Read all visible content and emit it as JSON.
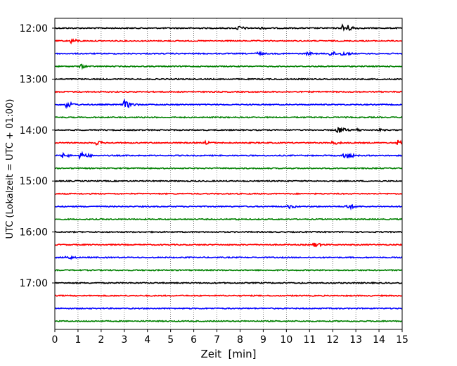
{
  "chart_data": {
    "type": "line",
    "title": "",
    "xlabel": "Zeit  [min]",
    "ylabel": "UTC (Lokalzeit = UTC + 01:00)",
    "xlim": [
      0,
      15
    ],
    "x_ticks": [
      "0",
      "1",
      "2",
      "3",
      "4",
      "5",
      "6",
      "7",
      "8",
      "9",
      "10",
      "11",
      "12",
      "13",
      "14",
      "15"
    ],
    "y_tick_labels": [
      "12:00",
      "13:00",
      "14:00",
      "15:00",
      "16:00",
      "17:00"
    ],
    "trace_interval_minutes": 15,
    "start_time": "12:00",
    "trace_count": 24,
    "colors": [
      "#000000",
      "#ff0000",
      "#0000ff",
      "#008000"
    ],
    "grid": "vertical dotted",
    "events": [
      {
        "trace": "12:00",
        "minute": 7.9,
        "amplitude": 0.35
      },
      {
        "trace": "12:00",
        "minute": 8.9,
        "amplitude": 0.2
      },
      {
        "trace": "12:00",
        "minute": 12.45,
        "amplitude": 0.75
      },
      {
        "trace": "12:15",
        "minute": 0.7,
        "amplitude": 0.35
      },
      {
        "trace": "12:30",
        "minute": 8.7,
        "amplitude": 0.3
      },
      {
        "trace": "12:30",
        "minute": 10.9,
        "amplitude": 0.25
      },
      {
        "trace": "12:30",
        "minute": 11.9,
        "amplitude": 0.35
      },
      {
        "trace": "12:30",
        "minute": 12.4,
        "amplitude": 0.35
      },
      {
        "trace": "12:45",
        "minute": 1.1,
        "amplitude": 0.3
      },
      {
        "trace": "13:30",
        "minute": 0.5,
        "amplitude": 0.45
      },
      {
        "trace": "13:30",
        "minute": 3.0,
        "amplitude": 0.6
      },
      {
        "trace": "14:00",
        "minute": 12.2,
        "amplitude": 0.55
      },
      {
        "trace": "14:00",
        "minute": 13.0,
        "amplitude": 0.25
      },
      {
        "trace": "14:00",
        "minute": 14.0,
        "amplitude": 0.2
      },
      {
        "trace": "14:15",
        "minute": 1.8,
        "amplitude": 0.3
      },
      {
        "trace": "14:15",
        "minute": 6.5,
        "amplitude": 0.25
      },
      {
        "trace": "14:15",
        "minute": 12.0,
        "amplitude": 0.3
      },
      {
        "trace": "14:15",
        "minute": 14.8,
        "amplitude": 0.4
      },
      {
        "trace": "14:30",
        "minute": 0.3,
        "amplitude": 0.35
      },
      {
        "trace": "14:30",
        "minute": 1.1,
        "amplitude": 0.55
      },
      {
        "trace": "14:30",
        "minute": 12.5,
        "amplitude": 0.55
      },
      {
        "trace": "15:30",
        "minute": 10.1,
        "amplitude": 0.3
      },
      {
        "trace": "15:30",
        "minute": 12.6,
        "amplitude": 0.45
      },
      {
        "trace": "15:45",
        "minute": 7.8,
        "amplitude": 0.15
      },
      {
        "trace": "16:15",
        "minute": 11.2,
        "amplitude": 0.35
      },
      {
        "trace": "16:30",
        "minute": 0.5,
        "amplitude": 0.35
      }
    ]
  }
}
